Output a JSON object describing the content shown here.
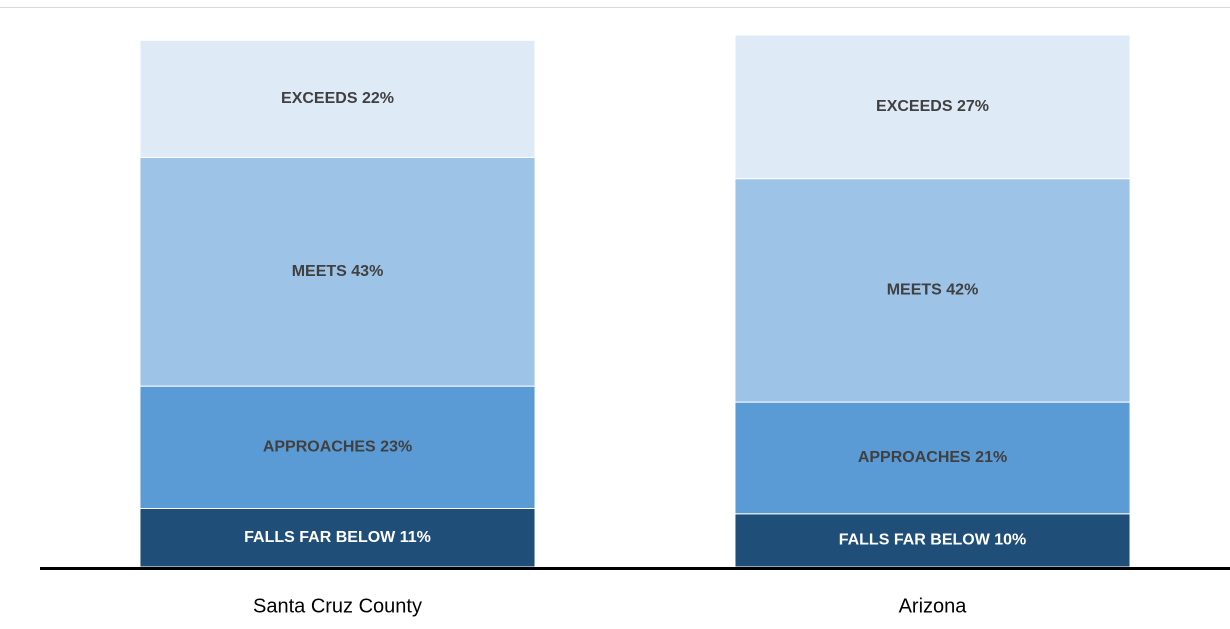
{
  "chart_data": {
    "type": "stacked_bar",
    "categories": [
      "Santa Cruz County",
      "Arizona"
    ],
    "ylim": [
      0,
      100
    ],
    "series": [
      {
        "name": "FALLS FAR BELOW",
        "color": "#1f4e79",
        "values": [
          11,
          10
        ],
        "value_labels": [
          "FALLS FAR BELOW 11%",
          "FALLS FAR BELOW 10%"
        ]
      },
      {
        "name": "APPROACHES",
        "color": "#5b9bd5",
        "values": [
          23,
          21
        ],
        "value_labels": [
          "APPROACHES 23%",
          "APPROACHES 21%"
        ]
      },
      {
        "name": "MEETS",
        "color": "#9dc3e6",
        "values": [
          43,
          42
        ],
        "value_labels": [
          "MEETS 43%",
          "MEETS 42%"
        ]
      },
      {
        "name": "EXCEEDS",
        "color": "#deebf7",
        "values": [
          22,
          27
        ],
        "value_labels": [
          "EXCEEDS 22%",
          "EXCEEDS 27%"
        ]
      }
    ]
  }
}
